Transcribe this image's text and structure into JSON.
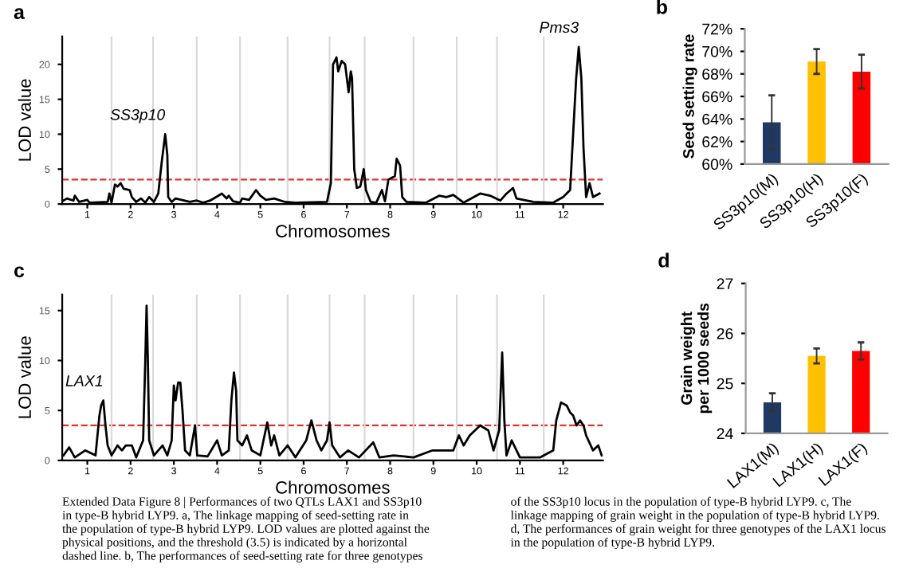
{
  "chart_data": [
    {
      "type": "line",
      "title": "a",
      "xlabel": "Chromosomes",
      "ylabel": "LOD value",
      "x": [
        0.45,
        0.53,
        0.68,
        0.71,
        0.81,
        1.0,
        1.05,
        1.47,
        1.51,
        1.56,
        1.64,
        1.7,
        1.77,
        1.84,
        1.98,
        2.03,
        2.13,
        2.24,
        2.34,
        2.43,
        2.54,
        2.64,
        2.72,
        2.76,
        2.8,
        2.85,
        2.87,
        2.95,
        3.04,
        3.37,
        3.53,
        3.68,
        3.84,
        4.11,
        4.22,
        4.27,
        4.37,
        4.53,
        4.58,
        4.74,
        4.9,
        5.0,
        5.13,
        5.32,
        5.57,
        5.81,
        6.54,
        6.63,
        6.68,
        6.76,
        6.8,
        6.88,
        6.96,
        7.0,
        7.04,
        7.09,
        7.12,
        7.17,
        7.23,
        7.31,
        7.39,
        7.44,
        7.55,
        7.68,
        7.81,
        7.88,
        7.96,
        8.11,
        8.15,
        8.23,
        8.28,
        8.38,
        8.83,
        9.14,
        9.3,
        9.46,
        9.7,
        10.08,
        10.31,
        10.55,
        10.69,
        10.84,
        10.92,
        11.31,
        11.77,
        12.0,
        12.16,
        12.23,
        12.3,
        12.36,
        12.42,
        12.47,
        12.53,
        12.61,
        12.69,
        12.84
      ],
      "series": [
        {
          "color": "#000000",
          "values": [
            0.5,
            0.8,
            0.5,
            1.2,
            0.3,
            0.6,
            0.2,
            0.3,
            1.5,
            0.2,
            2.8,
            2.5,
            3,
            2.2,
            2.0,
            1.0,
            0.3,
            0.8,
            0.2,
            1,
            0.3,
            1.5,
            6,
            8,
            10,
            7,
            1,
            0.3,
            0.8,
            0.3,
            0.5,
            0.2,
            0.5,
            1.5,
            0.8,
            1.2,
            0.4,
            0.2,
            0.8,
            0.6,
            2.0,
            1.2,
            0.6,
            0.8,
            0.3,
            0.2,
            0.3,
            3,
            20,
            21,
            19,
            20.5,
            20,
            18,
            16,
            19,
            18,
            5,
            2.3,
            2.5,
            5,
            2,
            0.3,
            0.2,
            2,
            0.4,
            3.5,
            4,
            6.5,
            5.5,
            1,
            0.3,
            0.2,
            1.2,
            1,
            1.3,
            0.2,
            1.5,
            1.2,
            0.5,
            1.5,
            2.3,
            0.8,
            0.3,
            0.2,
            1,
            2,
            10,
            18,
            22.5,
            18,
            8,
            1,
            3,
            1,
            1.5
          ]
        }
      ],
      "xlim": [
        0.42,
        12.92
      ],
      "ylim": [
        0,
        24
      ],
      "yticks": [
        0,
        5,
        10,
        15,
        20
      ],
      "xticks": [
        1,
        2,
        3,
        4,
        5,
        6,
        7,
        8,
        9,
        10,
        11,
        12
      ],
      "ref_lines": [
        {
          "axis": "y",
          "value": 3.5,
          "color": "#e03030",
          "line_style": "dashed"
        },
        {
          "axis": "x",
          "value": 1.56,
          "color": "#d9d9d9"
        },
        {
          "axis": "x",
          "value": 2.52,
          "color": "#d9d9d9"
        },
        {
          "axis": "x",
          "value": 3.53,
          "color": "#d9d9d9"
        },
        {
          "axis": "x",
          "value": 4.53,
          "color": "#d9d9d9"
        },
        {
          "axis": "x",
          "value": 5.63,
          "color": "#d9d9d9"
        },
        {
          "axis": "x",
          "value": 6.6,
          "color": "#d9d9d9"
        },
        {
          "axis": "x",
          "value": 7.41,
          "color": "#d9d9d9"
        },
        {
          "axis": "x",
          "value": 8.54,
          "color": "#d9d9d9"
        },
        {
          "axis": "x",
          "value": 9.54,
          "color": "#d9d9d9"
        },
        {
          "axis": "x",
          "value": 10.47,
          "color": "#d9d9d9"
        },
        {
          "axis": "x",
          "value": 11.55,
          "color": "#d9d9d9"
        }
      ],
      "annotations": [
        {
          "text": "SS3p10",
          "x": 2.8,
          "y": 10
        },
        {
          "text": "Pms3",
          "x": 12.36,
          "y": 22.5
        }
      ]
    },
    {
      "type": "bar",
      "title": "b",
      "ylabel": "Seed setting rate",
      "categories": [
        "SS3p10(M)",
        "SS3p10(H)",
        "SS3p10(F)"
      ],
      "values": [
        63.7,
        69.1,
        68.2
      ],
      "errors": [
        2.4,
        1.1,
        1.5
      ],
      "colors": [
        "#1f3864",
        "#ffc000",
        "#ff0000"
      ],
      "ylim": [
        60,
        72
      ],
      "yticks": [
        {
          "value": 60,
          "label": "60%"
        },
        {
          "value": 62,
          "label": "62%"
        },
        {
          "value": 64,
          "label": "64%"
        },
        {
          "value": 66,
          "label": "66%"
        },
        {
          "value": 68,
          "label": "68%"
        },
        {
          "value": 70,
          "label": "70%"
        },
        {
          "value": 72,
          "label": "72%"
        }
      ]
    },
    {
      "type": "line",
      "title": "c",
      "xlabel": "Chromosomes",
      "ylabel": "LOD value",
      "x": [
        0.45,
        0.58,
        0.71,
        0.95,
        1.19,
        1.28,
        1.32,
        1.37,
        1.42,
        1.47,
        1.56,
        1.7,
        1.8,
        1.89,
        2.03,
        2.13,
        2.29,
        2.34,
        2.37,
        2.4,
        2.43,
        2.54,
        2.74,
        2.85,
        2.95,
        3.0,
        3.04,
        3.1,
        3.15,
        3.2,
        3.26,
        3.37,
        3.49,
        3.54,
        3.78,
        4.0,
        4.11,
        4.27,
        4.33,
        4.39,
        4.44,
        4.47,
        4.58,
        4.69,
        4.8,
        5.0,
        5.16,
        5.25,
        5.32,
        5.44,
        5.63,
        5.81,
        6.06,
        6.18,
        6.3,
        6.41,
        6.54,
        6.6,
        6.66,
        6.84,
        7.03,
        7.28,
        7.61,
        7.75,
        8.08,
        8.54,
        8.98,
        9.46,
        9.59,
        9.7,
        9.84,
        10.08,
        10.27,
        10.39,
        10.52,
        10.59,
        10.64,
        10.69,
        10.81,
        11.0,
        11.47,
        11.77,
        11.84,
        11.95,
        12.08,
        12.16,
        12.23,
        12.31,
        12.39,
        12.47,
        12.53,
        12.69,
        12.81,
        12.89
      ],
      "series": [
        {
          "color": "#000000",
          "values": [
            0.5,
            1.3,
            0.3,
            1,
            0.5,
            4.5,
            5.5,
            6.0,
            3.5,
            1.5,
            0.5,
            1.5,
            1,
            1.5,
            1.5,
            0.3,
            2,
            10,
            15.5,
            10,
            2,
            0.5,
            1.5,
            0.5,
            2,
            7.5,
            6,
            7.8,
            7.8,
            5,
            1,
            0.5,
            3.5,
            0.5,
            0.4,
            2,
            0.5,
            1,
            6,
            8.8,
            7,
            2,
            1.5,
            2.5,
            1,
            0.5,
            3.8,
            1.5,
            2.5,
            0.5,
            1.5,
            0.3,
            2,
            4,
            2,
            1,
            2,
            3.8,
            1.5,
            0.3,
            1,
            0.3,
            1.8,
            0.3,
            0.5,
            0.3,
            1,
            1,
            2.5,
            1.5,
            2.5,
            3.5,
            3.0,
            1.0,
            3,
            10.8,
            4,
            0.5,
            2,
            0.3,
            0.3,
            1,
            4,
            5.8,
            5.5,
            4.8,
            4.5,
            3.5,
            4.0,
            3.5,
            2.5,
            1.0,
            1.5,
            0.5
          ]
        }
      ],
      "xlim": [
        0.42,
        12.92
      ],
      "ylim": [
        0,
        16.6
      ],
      "yticks": [
        0,
        5,
        10,
        15
      ],
      "xticks": [
        1,
        2,
        3,
        4,
        5,
        6,
        7,
        8,
        9,
        10,
        11,
        12
      ],
      "ref_lines": [
        {
          "axis": "y",
          "value": 3.5,
          "color": "#e03030",
          "line_style": "dashed"
        },
        {
          "axis": "x",
          "value": 1.56,
          "color": "#d9d9d9"
        },
        {
          "axis": "x",
          "value": 2.52,
          "color": "#d9d9d9"
        },
        {
          "axis": "x",
          "value": 3.53,
          "color": "#d9d9d9"
        },
        {
          "axis": "x",
          "value": 4.53,
          "color": "#d9d9d9"
        },
        {
          "axis": "x",
          "value": 5.63,
          "color": "#d9d9d9"
        },
        {
          "axis": "x",
          "value": 6.6,
          "color": "#d9d9d9"
        },
        {
          "axis": "x",
          "value": 7.41,
          "color": "#d9d9d9"
        },
        {
          "axis": "x",
          "value": 8.54,
          "color": "#d9d9d9"
        },
        {
          "axis": "x",
          "value": 9.54,
          "color": "#d9d9d9"
        },
        {
          "axis": "x",
          "value": 10.47,
          "color": "#d9d9d9"
        },
        {
          "axis": "x",
          "value": 11.55,
          "color": "#d9d9d9"
        }
      ],
      "annotations": [
        {
          "text": "LAX1",
          "x": 1.37,
          "y": 6.0
        },
        "Extended Data Figure 8 | Performances of two QTLs LAX1 and SS3p10\nin type-B hybrid LYP9. a, The linkage mapping of seed-setting rate in\nthe population of type-B hybrid LYP9. LOD values are plotted against the\nphysical positions, and the threshold (3.5) is indicated by a horizontal\ndashed line. b, The performances of seed-setting rate for three genotypes",
        "of the SS3p10 locus in the population of type-B hybrid LYP9. c, The\nlinkage mapping of grain weight in the population of type-B hybrid LYP9.\nd, The performances of grain weight for three genotypes of the LAX1 locus\nin the population of type-B hybrid LYP9."
      ]
    },
    {
      "type": "bar",
      "title": "d",
      "ylabel": "Grain weight\nper 1000 seeds",
      "categories": [
        "LAX1(M)",
        "LAX1(H)",
        "LAX1(F)"
      ],
      "values": [
        24.62,
        25.55,
        25.65
      ],
      "errors": [
        0.18,
        0.15,
        0.17
      ],
      "colors": [
        "#1f3864",
        "#ffc000",
        "#ff0000"
      ],
      "ylim": [
        24,
        27
      ],
      "yticks": [
        24,
        25,
        26,
        27
      ]
    }
  ]
}
